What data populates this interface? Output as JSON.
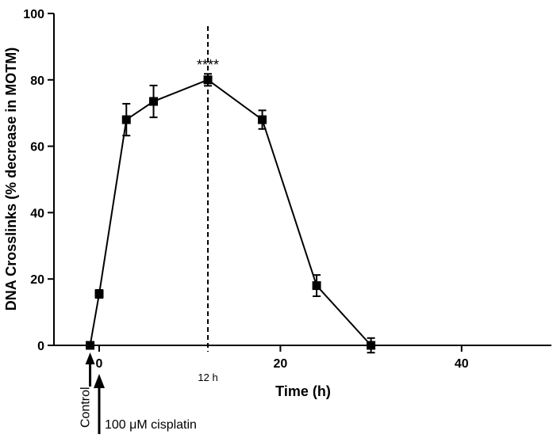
{
  "chart_data": {
    "type": "line",
    "title": "",
    "xlabel": "Time (h)",
    "ylabel": "DNA Crosslinks (% decrease in MOTM)",
    "xlim": [
      -8,
      50
    ],
    "ylim": [
      0,
      100
    ],
    "x_ticks": [
      0,
      20,
      40
    ],
    "x_tick_labels": [
      "0",
      "20",
      "40"
    ],
    "y_ticks": [
      0,
      20,
      40,
      60,
      80,
      100
    ],
    "y_tick_labels": [
      "0",
      "20",
      "40",
      "60",
      "80",
      "100"
    ],
    "grid": false,
    "series": [
      {
        "x": [
          -1,
          0,
          3,
          6,
          12,
          18,
          24,
          30
        ],
        "y": [
          0,
          15.5,
          68,
          73.5,
          80,
          68,
          18,
          0
        ],
        "err": [
          0,
          1.2,
          4.8,
          4.8,
          1.8,
          2.8,
          3.2,
          2.2
        ]
      }
    ],
    "reference_line": {
      "x": 12,
      "style": "dashed",
      "label": "12 h"
    },
    "significance": {
      "x": 12,
      "text": "****"
    },
    "annotations": [
      {
        "text": "Control",
        "x": -1
      },
      {
        "text": "100 μM cisplatin",
        "x": 0
      }
    ],
    "colors": {
      "line": "#000000",
      "marker": "#000000"
    }
  }
}
